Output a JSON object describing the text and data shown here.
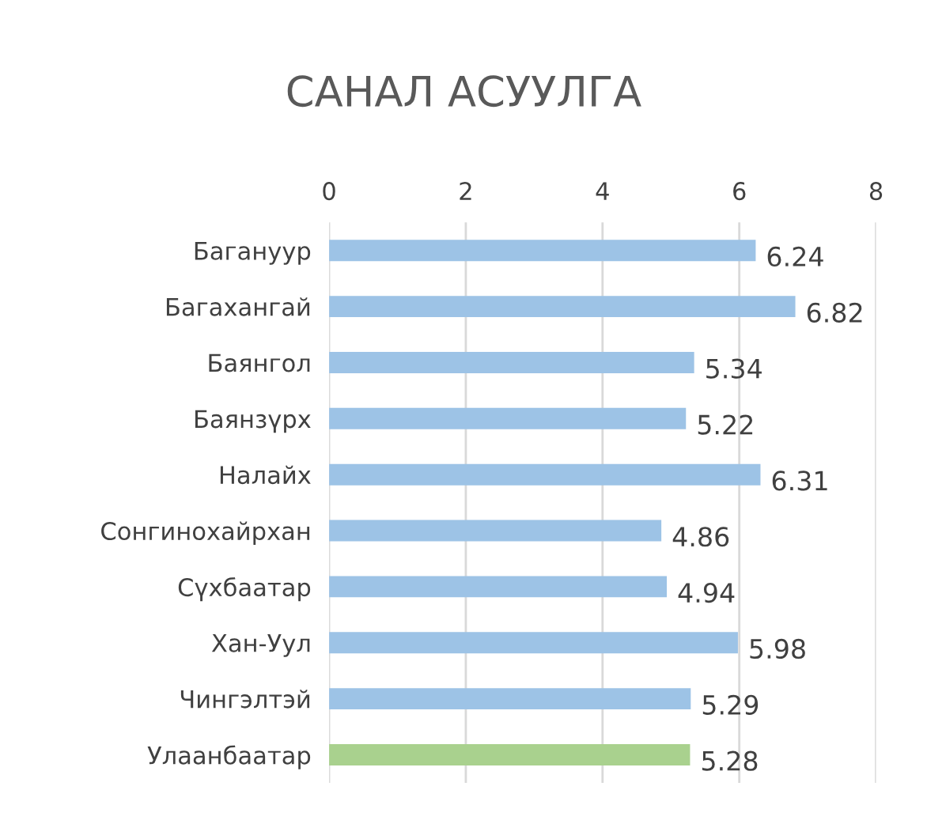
{
  "chart_data": {
    "type": "bar",
    "orientation": "horizontal",
    "title": "САНАЛ АСУУЛГА",
    "categories": [
      "Багануур",
      "Багахангай",
      "Баянгол",
      "Баянзүрх",
      "Налайх",
      "Сонгинохайрхан",
      "Сүхбаатар",
      "Хан-Уул",
      "Чингэлтэй",
      "Улаанбаатар"
    ],
    "values": [
      6.24,
      6.82,
      5.34,
      5.22,
      6.31,
      4.86,
      4.94,
      5.98,
      5.29,
      5.28
    ],
    "colors": [
      "#9dc3e6",
      "#9dc3e6",
      "#9dc3e6",
      "#9dc3e6",
      "#9dc3e6",
      "#9dc3e6",
      "#9dc3e6",
      "#9dc3e6",
      "#9dc3e6",
      "#a9d18e"
    ],
    "xlim": [
      0,
      8
    ],
    "xticks": [
      0,
      2,
      4,
      6,
      8
    ],
    "grid": "x",
    "data_labels": true,
    "legend": false
  }
}
